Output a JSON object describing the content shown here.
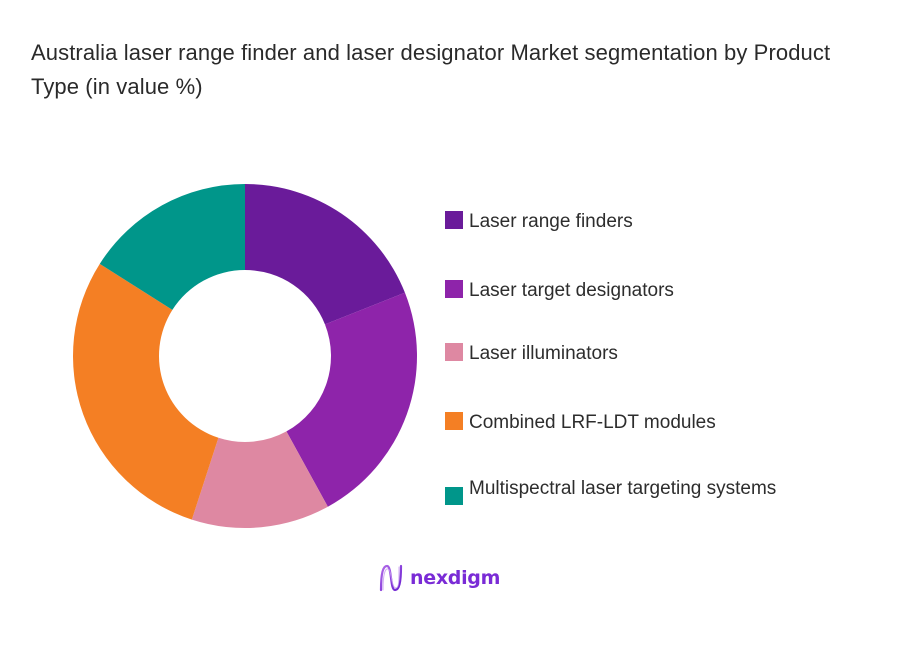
{
  "title": "Australia laser range finder and laser designator Market segmentation by Product Type (in value %)",
  "chart_data": {
    "type": "pie",
    "subtype": "donut",
    "title": "Australia laser range finder and laser designator Market segmentation by Product Type (in value %)",
    "categories": [
      "Laser range finders",
      "Laser target designators",
      "Laser illuminators",
      "Combined LRF-LDT modules",
      "Multispectral laser targeting systems"
    ],
    "values": [
      19,
      23,
      13,
      29,
      16
    ],
    "colors": [
      "#6a1b9a",
      "#8e24aa",
      "#de88a2",
      "#f47f24",
      "#00968a"
    ],
    "legend_position": "right",
    "data_labels": false,
    "start_angle_deg": 0,
    "direction": "clockwise",
    "inner_radius_ratio": 0.5
  },
  "legend": {
    "items": [
      {
        "label": "Laser range finders",
        "color": "#6a1b9a"
      },
      {
        "label": "Laser target designators",
        "color": "#8e24aa"
      },
      {
        "label": "Laser illuminators",
        "color": "#de88a2"
      },
      {
        "label": "Combined LRF-LDT modules",
        "color": "#f47f24"
      },
      {
        "label": "Multispectral laser targeting systems",
        "color": "#00968a"
      }
    ]
  },
  "branding": {
    "logo_text": "nexdigm",
    "logo_color": "#7a2bd6"
  }
}
